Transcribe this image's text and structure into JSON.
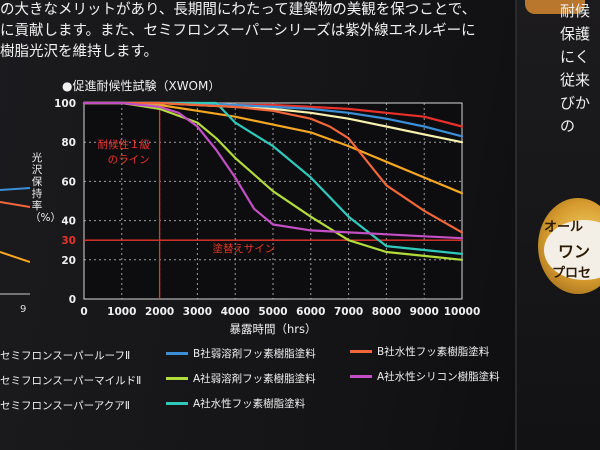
{
  "intro_lines": [
    "の大きなメリットがあり、長期間にわたって建築物の美観を保つことで、",
    "に貢献します。また、セミフロンスーパーシリーズは紫外線エネルギーに",
    "樹脂光沢を維持します。"
  ],
  "right_panel": {
    "lines": [
      "耐候",
      "保護",
      "にく",
      "従来",
      "びか",
      "の"
    ],
    "bubble_lines": [
      "オール",
      "ワン",
      "プロセ"
    ]
  },
  "left_panel": {
    "tick": "9"
  },
  "chart_data": {
    "type": "line",
    "title": "●促進耐候性試験（XWOM）",
    "xlabel": "暴露時間（hrs）",
    "ylabel": "光沢保持率（%）",
    "xlim": [
      0,
      10000
    ],
    "ylim": [
      0,
      100
    ],
    "xticks": [
      0,
      1000,
      2000,
      3000,
      4000,
      5000,
      6000,
      7000,
      8000,
      9000,
      10000
    ],
    "yticks": [
      0,
      20,
      40,
      60,
      80,
      100
    ],
    "grid": true,
    "reference_lines": [
      {
        "orientation": "vertical",
        "value": 2000,
        "label_lines": [
          "耐候性１級",
          "のライン"
        ],
        "color": "#e8352b"
      },
      {
        "orientation": "horizontal",
        "value": 30,
        "label": "塗替えサイン",
        "tick_label": "30",
        "color": "#e8352b"
      }
    ],
    "series": [
      {
        "name": "セミフロンスーパールーフⅡ",
        "color": "#e7302a",
        "x": [
          0,
          1000,
          2000,
          3000,
          4000,
          5000,
          6000,
          7000,
          8000,
          9000,
          10000
        ],
        "y": [
          100,
          100,
          100,
          100,
          99,
          99,
          98,
          97,
          95,
          93,
          88
        ]
      },
      {
        "name": "セミフロンスーパーマイルドⅡ",
        "color": "#f5a623",
        "x": [
          0,
          1000,
          2000,
          3000,
          4000,
          5000,
          6000,
          7000,
          8000,
          9000,
          10000
        ],
        "y": [
          100,
          100,
          99,
          96,
          93,
          89,
          85,
          78,
          70,
          62,
          54
        ]
      },
      {
        "name": "セミフロンスーパーアクアⅡ",
        "color": "#f7f0ae",
        "x": [
          0,
          1000,
          2000,
          3000,
          4000,
          5000,
          6000,
          7000,
          8000,
          9000,
          10000
        ],
        "y": [
          100,
          100,
          100,
          99,
          98,
          97,
          95,
          92,
          88,
          84,
          80
        ]
      },
      {
        "name": "B社弱溶剤フッ素樹脂塗料",
        "color": "#3a8fd8",
        "x": [
          0,
          1000,
          2000,
          3000,
          4000,
          5000,
          6000,
          7000,
          8000,
          9000,
          10000
        ],
        "y": [
          100,
          100,
          100,
          100,
          99,
          98,
          97,
          95,
          92,
          88,
          83
        ]
      },
      {
        "name": "A社弱溶剤フッ素樹脂塗料",
        "color": "#b2dc3c",
        "x": [
          0,
          1000,
          2000,
          3000,
          3500,
          4000,
          5000,
          6000,
          7000,
          8000,
          9000,
          10000
        ],
        "y": [
          100,
          100,
          97,
          90,
          82,
          72,
          55,
          42,
          30,
          24,
          22,
          20
        ]
      },
      {
        "name": "A社水性フッ素樹脂塗料",
        "color": "#2fc9bb",
        "x": [
          0,
          1000,
          2000,
          3500,
          4000,
          5000,
          6000,
          7000,
          8000,
          9000,
          10000
        ],
        "y": [
          100,
          100,
          100,
          100,
          90,
          78,
          62,
          42,
          27,
          25,
          23
        ]
      },
      {
        "name": "B社水性フッ素樹脂塗料",
        "color": "#f2663a",
        "x": [
          0,
          1000,
          2000,
          3000,
          4000,
          5000,
          6000,
          6500,
          7000,
          8000,
          9000,
          10000
        ],
        "y": [
          100,
          100,
          100,
          99,
          98,
          96,
          92,
          88,
          82,
          58,
          45,
          34
        ]
      },
      {
        "name": "A社水性シリコン樹脂塗料",
        "color": "#c24fc4",
        "x": [
          0,
          1000,
          2000,
          2500,
          3000,
          3500,
          4000,
          4500,
          5000,
          6000,
          7000,
          8000,
          9000,
          10000
        ],
        "y": [
          100,
          100,
          98,
          95,
          88,
          76,
          62,
          46,
          38,
          35,
          34,
          33,
          32,
          31
        ]
      }
    ],
    "legend": [
      "セミフロンスーパールーフⅡ",
      "セミフロンスーパーマイルドⅡ",
      "セミフロンスーパーアクアⅡ",
      "B社弱溶剤フッ素樹脂塗料",
      "A社弱溶剤フッ素樹脂塗料",
      "A社水性フッ素樹脂塗料",
      "B社水性フッ素樹脂塗料",
      "A社水性シリコン樹脂塗料"
    ]
  }
}
